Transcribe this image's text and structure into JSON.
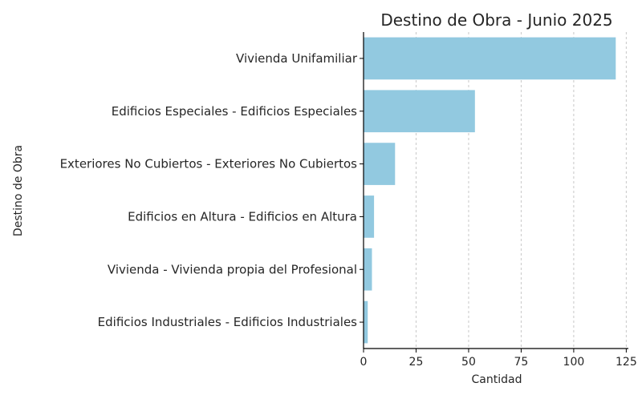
{
  "chart_data": {
    "type": "bar",
    "orientation": "horizontal",
    "title": "Destino de Obra - Junio 2025",
    "xlabel": "Cantidad",
    "ylabel": "Destino de Obra",
    "categories": [
      "Vivienda Unifamiliar",
      "Edificios Especiales - Edificios Especiales",
      "Exteriores No Cubiertos - Exteriores No Cubiertos",
      "Edificios en Altura - Edificios en Altura",
      "Vivienda - Vivienda propia del Profesional",
      "Edificios Industriales - Edificios Industriales"
    ],
    "values": [
      120,
      53,
      15,
      5,
      4,
      2
    ],
    "xlim": [
      0,
      126
    ],
    "xticks": [
      0,
      25,
      50,
      75,
      100,
      125
    ],
    "grid": "x-dashed",
    "legend": "none",
    "bar_color": "#92c9e0"
  }
}
